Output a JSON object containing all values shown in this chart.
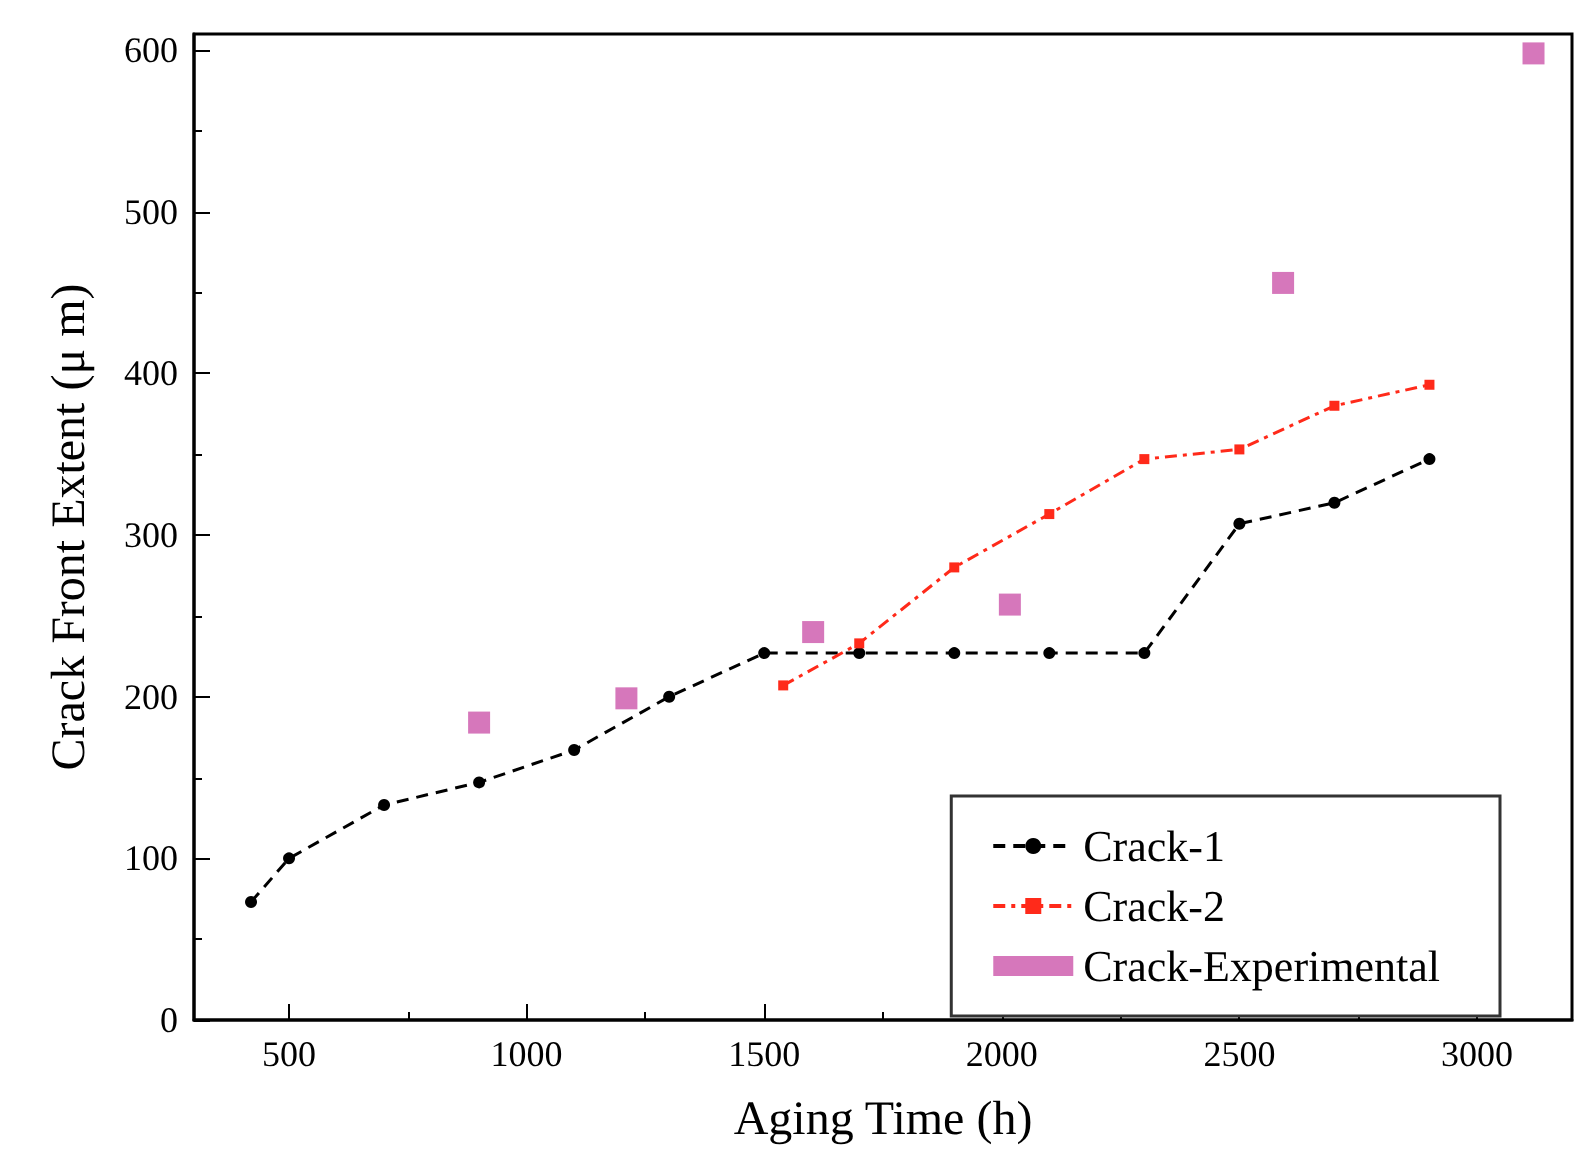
{
  "chart_data": {
    "type": "line",
    "xlabel": "Aging Time (h)",
    "ylabel": "Crack Front Extent (μ m)",
    "xlim": [
      300,
      3200
    ],
    "xticks": [
      500,
      1000,
      1500,
      2000,
      2500,
      3000
    ],
    "ylim": [
      0,
      610
    ],
    "yticks": [
      0,
      100,
      200,
      300,
      400,
      500,
      600
    ],
    "grid": false,
    "legend": "bottom right",
    "series": [
      {
        "name": "Crack-1",
        "color": "#000000",
        "marker": "circle",
        "line_style": "dashed",
        "x": [
          420,
          500,
          700,
          900,
          1100,
          1300,
          1500,
          1700,
          1900,
          2100,
          2300,
          2500,
          2700,
          2900
        ],
        "values": [
          73,
          100,
          133,
          147,
          167,
          200,
          227,
          227,
          227,
          227,
          227,
          307,
          320,
          347
        ]
      },
      {
        "name": "Crack-2",
        "color": "#ff2a1a",
        "marker": "square",
        "line_style": "dashdot",
        "x": [
          1540,
          1700,
          1900,
          2100,
          2300,
          2500,
          2700,
          2900
        ],
        "values": [
          207,
          233,
          280,
          313,
          347,
          353,
          380,
          393
        ]
      },
      {
        "name": "Crack-Experimental",
        "type": "scatter",
        "color": "#cc55aa",
        "marker": "square",
        "x": [
          900,
          1210,
          1603,
          2017,
          2592,
          3119
        ],
        "values": [
          184,
          199,
          240,
          257,
          456,
          598
        ]
      }
    ]
  }
}
